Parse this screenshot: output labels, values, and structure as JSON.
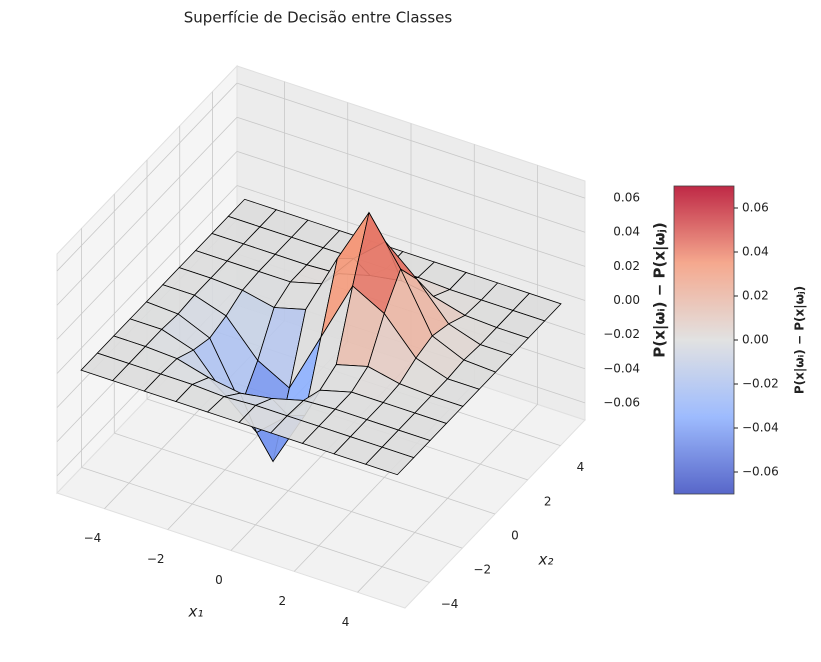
{
  "chart_data": {
    "type": "surface",
    "title": "Superfície de Decisão entre Classes",
    "xlabel": "x₁",
    "ylabel": "x₂",
    "zlabel": "P(x|ωᵢ) − P(x|ωⱼ)",
    "x": [
      -5,
      -4,
      -3,
      -2,
      -1,
      0,
      1,
      2,
      3,
      4,
      5
    ],
    "y": [
      -5,
      -4,
      -3,
      -2,
      -1,
      0,
      1,
      2,
      3,
      4,
      5
    ],
    "z": [
      [
        0,
        0,
        0,
        0,
        0,
        0,
        0,
        0,
        0,
        0,
        0
      ],
      [
        0,
        0,
        0,
        0,
        -0.001,
        0,
        0,
        0,
        0,
        0,
        0
      ],
      [
        0,
        0,
        -0.001,
        -0.006,
        -0.009,
        -0.006,
        -0.001,
        0,
        0,
        0,
        0
      ],
      [
        0,
        0,
        -0.006,
        -0.026,
        -0.042,
        -0.026,
        -0.005,
        0,
        0,
        0,
        0
      ],
      [
        0,
        -0.001,
        -0.009,
        -0.042,
        -0.069,
        -0.036,
        0,
        0.005,
        0.001,
        0,
        0
      ],
      [
        0,
        0,
        -0.006,
        -0.026,
        -0.036,
        0,
        0.036,
        0.026,
        0.006,
        0,
        0
      ],
      [
        0,
        0,
        -0.001,
        -0.005,
        0,
        0.036,
        0.069,
        0.042,
        0.009,
        0.001,
        0
      ],
      [
        0,
        0,
        0,
        0,
        0.005,
        0.026,
        0.042,
        0.026,
        0.006,
        0,
        0
      ],
      [
        0,
        0,
        0,
        0,
        0.001,
        0.006,
        0.009,
        0.006,
        0.001,
        0,
        0
      ],
      [
        0,
        0,
        0,
        0,
        0,
        0,
        0.001,
        0,
        0,
        0,
        0
      ],
      [
        0,
        0,
        0,
        0,
        0,
        0,
        0,
        0,
        0,
        0,
        0
      ]
    ],
    "xlim": [
      -5.5,
      5.5
    ],
    "ylim": [
      -5.5,
      5.5
    ],
    "zlim": [
      -0.07,
      0.07
    ],
    "xticks": [
      {
        "value": -4,
        "label": "−4"
      },
      {
        "value": -2,
        "label": "−2"
      },
      0,
      2,
      4
    ],
    "yticks": [
      {
        "value": -4,
        "label": "−4"
      },
      {
        "value": -2,
        "label": "−2"
      },
      0,
      2,
      4
    ],
    "zticks": [
      {
        "value": -0.06,
        "label": "−0.06"
      },
      {
        "value": -0.04,
        "label": "−0.04"
      },
      {
        "value": -0.02,
        "label": "−0.02"
      },
      {
        "value": 0,
        "label": "0.00"
      },
      0.02,
      0.04,
      0.06
    ],
    "colormap": "coolwarm",
    "colorbar": {
      "label": "P(x|ωᵢ) − P(x|ωⱼ)",
      "lim": [
        -0.07,
        0.07
      ],
      "ticks": [
        {
          "value": -0.06,
          "label": "−0.06"
        },
        {
          "value": -0.04,
          "label": "−0.04"
        },
        {
          "value": -0.02,
          "label": "−0.02"
        },
        {
          "value": 0,
          "label": "0.00"
        },
        0.02,
        0.04,
        0.06
      ]
    },
    "grid": true
  }
}
